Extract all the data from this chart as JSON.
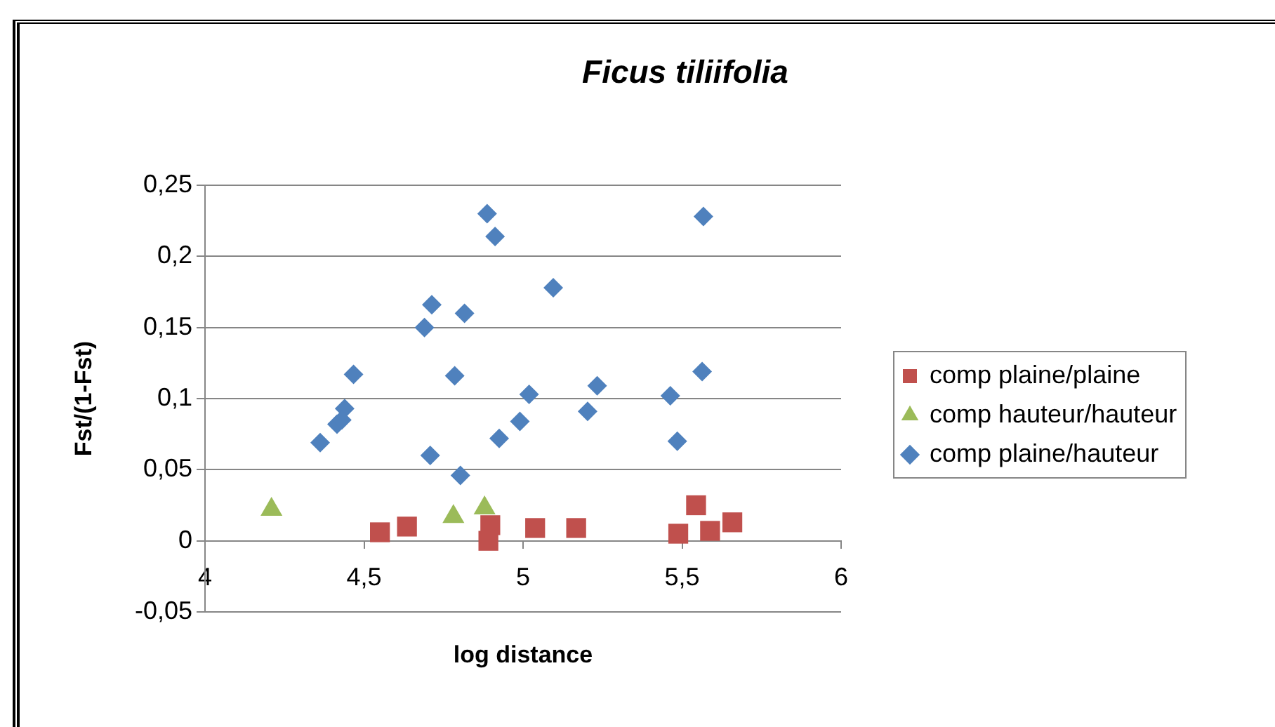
{
  "chart_data": {
    "type": "scatter",
    "title": "Ficus tiliifolia",
    "xlabel": "log distance",
    "ylabel": "Fst/(1-Fst)",
    "xlim": [
      4,
      6
    ],
    "xticks": [
      4,
      {
        "value": 4.5,
        "label": "4,5"
      },
      5,
      {
        "value": 5.5,
        "label": "5,5"
      },
      6
    ],
    "ylim": [
      -0.05,
      0.25
    ],
    "yticks": [
      {
        "value": -0.05,
        "label": "-0,05"
      },
      0,
      {
        "value": 0.05,
        "label": "0,05"
      },
      {
        "value": 0.1,
        "label": "0,1"
      },
      {
        "value": 0.15,
        "label": "0,15"
      },
      {
        "value": 0.2,
        "label": "0,2"
      },
      {
        "value": 0.25,
        "label": "0,25"
      }
    ],
    "grid": "y",
    "legend": "right",
    "series": [
      {
        "name": "comp plaine/plaine",
        "color": "#c0504d",
        "marker": "square",
        "x": [
          4.55,
          4.635,
          4.897,
          4.891,
          5.038,
          5.167,
          5.488,
          5.544,
          5.588,
          5.658
        ],
        "values": [
          0.006,
          0.01,
          0.011,
          0,
          0.009,
          0.009,
          0.005,
          0.025,
          0.007,
          0.013
        ]
      },
      {
        "name": "comp hauteur/hauteur",
        "color": "#9bbb59",
        "marker": "triangle",
        "x": [
          4.209,
          4.781,
          4.879
        ],
        "values": [
          0.022,
          0.017,
          0.023
        ]
      },
      {
        "name": "comp plaine/hauteur",
        "color": "#4f81bd",
        "marker": "diamond",
        "x": [
          4.887,
          4.912,
          4.713,
          4.816,
          4.69,
          4.467,
          4.785,
          5.019,
          4.439,
          4.99,
          4.415,
          4.43,
          4.925,
          4.362,
          4.708,
          4.803,
          5.567,
          5.095,
          5.563,
          5.233,
          5.463,
          5.203,
          5.485
        ],
        "values": [
          0.23,
          0.214,
          0.166,
          0.16,
          0.15,
          0.117,
          0.116,
          0.103,
          0.093,
          0.084,
          0.082,
          0.085,
          0.072,
          0.069,
          0.06,
          0.046,
          0.228,
          0.178,
          0.119,
          0.109,
          0.102,
          0.091,
          0.07
        ]
      }
    ]
  }
}
